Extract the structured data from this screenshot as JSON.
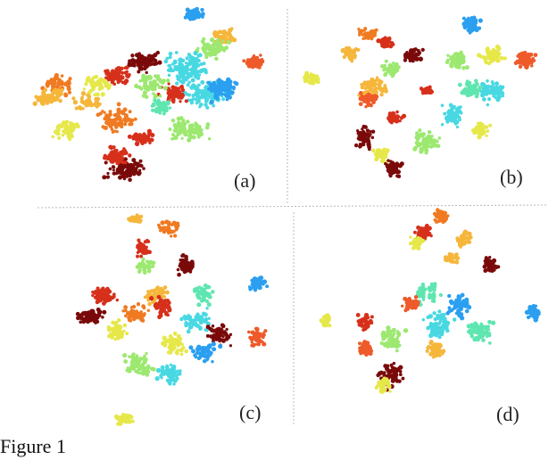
{
  "figure": {
    "panels": [
      {
        "id": "a",
        "label": "(a)"
      },
      {
        "id": "b",
        "label": "(b)"
      },
      {
        "id": "c",
        "label": "(c)"
      },
      {
        "id": "d",
        "label": "(d)"
      }
    ],
    "caption": "Figure 1"
  },
  "colors": {
    "clusters": [
      "#7a0a0a",
      "#d6301b",
      "#f07a22",
      "#f5b63a",
      "#e6e84a",
      "#9ce870",
      "#5fe6b0",
      "#48d8e2",
      "#2b9ff0",
      "#ee5a2a"
    ],
    "divider": "#b8b8b8"
  }
}
